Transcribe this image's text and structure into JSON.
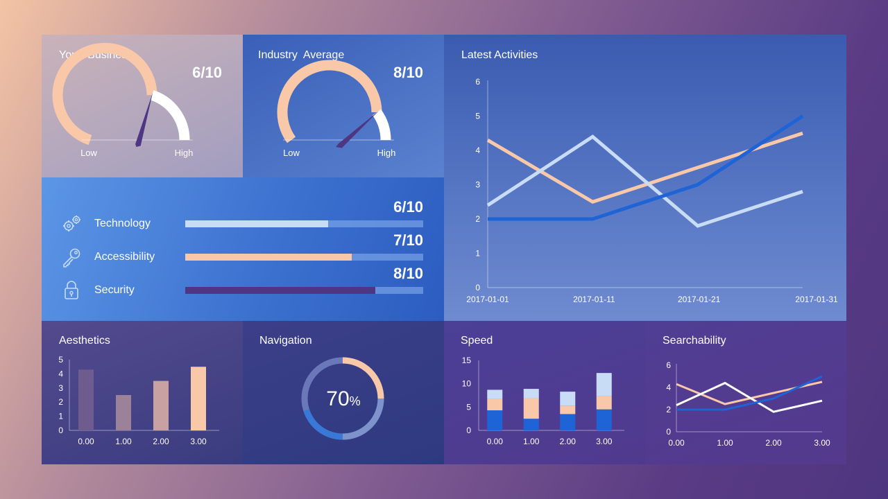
{
  "gauges": {
    "your_business": {
      "title": "Your  Business",
      "score": "6/10",
      "value": 6,
      "max": 10,
      "low": "Low",
      "high": "High"
    },
    "industry_average": {
      "title": "Industry  Average",
      "score": "8/10",
      "value": 8,
      "max": 10,
      "low": "Low",
      "high": "High"
    }
  },
  "scores": {
    "rows": [
      {
        "label": "Technology",
        "score": "6/10",
        "value": 6,
        "max": 10,
        "icon": "gears-icon",
        "color": "#c9dcf6"
      },
      {
        "label": "Accessibility",
        "score": "7/10",
        "value": 7,
        "max": 10,
        "icon": "key-icon",
        "color": "#f8c8a8"
      },
      {
        "label": "Security",
        "score": "8/10",
        "value": 8,
        "max": 10,
        "icon": "padlock-icon",
        "color": "#4e3682"
      }
    ]
  },
  "colors": {
    "peach": "#f8c8a8",
    "light_blue": "#c9dcf6",
    "blue": "#1e64d6",
    "purple_needle": "#4e3682"
  },
  "chart_data": [
    {
      "id": "latest_activities",
      "type": "line",
      "title": "Latest Activities",
      "x": [
        "2017-01-01",
        "2017-01-11",
        "2017-01-21",
        "2017-01-31"
      ],
      "ylim": [
        0,
        6
      ],
      "yticks": [
        "0",
        "1",
        "2",
        "3",
        "4",
        "5",
        "6"
      ],
      "series": [
        {
          "values": [
            4.3,
            2.5,
            3.5,
            4.5
          ],
          "color": "#f8c8a8"
        },
        {
          "values": [
            2.4,
            4.4,
            1.8,
            2.8
          ],
          "color": "#c9dcf6"
        },
        {
          "values": [
            2.0,
            2.0,
            3.0,
            5.0
          ],
          "color": "#1e64d6"
        }
      ]
    },
    {
      "id": "aesthetics",
      "type": "bar",
      "title": "Aesthetics",
      "categories": [
        "0.00",
        "1.00",
        "2.00",
        "3.00"
      ],
      "values": [
        4.3,
        2.5,
        3.5,
        4.5
      ],
      "colors": [
        "#6e5c8e",
        "#9c8298",
        "#c8a2a2",
        "#f8c8a8"
      ],
      "ylim": [
        0,
        5
      ],
      "yticks": [
        "0",
        "1",
        "2",
        "3",
        "4",
        "5"
      ]
    },
    {
      "id": "navigation",
      "type": "pie",
      "title": "Navigation",
      "value": 70,
      "value_text": "70",
      "unit": "%"
    },
    {
      "id": "speed",
      "type": "bar",
      "stacked": true,
      "title": "Speed",
      "categories": [
        "0.00",
        "1.00",
        "2.00",
        "3.00"
      ],
      "series": [
        {
          "values": [
            4.3,
            2.5,
            3.5,
            4.5
          ],
          "color": "#1e64d6"
        },
        {
          "values": [
            2.4,
            4.4,
            1.8,
            2.8
          ],
          "color": "#f8c8a8"
        },
        {
          "values": [
            2.0,
            2.0,
            3.0,
            5.0
          ],
          "color": "#c9dcf6"
        }
      ],
      "ylim": [
        0,
        15
      ],
      "yticks": [
        "0",
        "5",
        "10",
        "15"
      ]
    },
    {
      "id": "searchability",
      "type": "line",
      "title": "Searchability",
      "x": [
        "0.00",
        "1.00",
        "2.00",
        "3.00"
      ],
      "ylim": [
        0,
        6
      ],
      "yticks": [
        "0",
        "2",
        "4",
        "6"
      ],
      "series": [
        {
          "values": [
            4.3,
            2.5,
            3.5,
            4.5
          ],
          "color": "#f8c8a8"
        },
        {
          "values": [
            2.4,
            4.4,
            1.8,
            2.8
          ],
          "color": "#ffffff"
        },
        {
          "values": [
            2.0,
            2.0,
            3.0,
            5.0
          ],
          "color": "#1e64d6"
        }
      ]
    }
  ]
}
